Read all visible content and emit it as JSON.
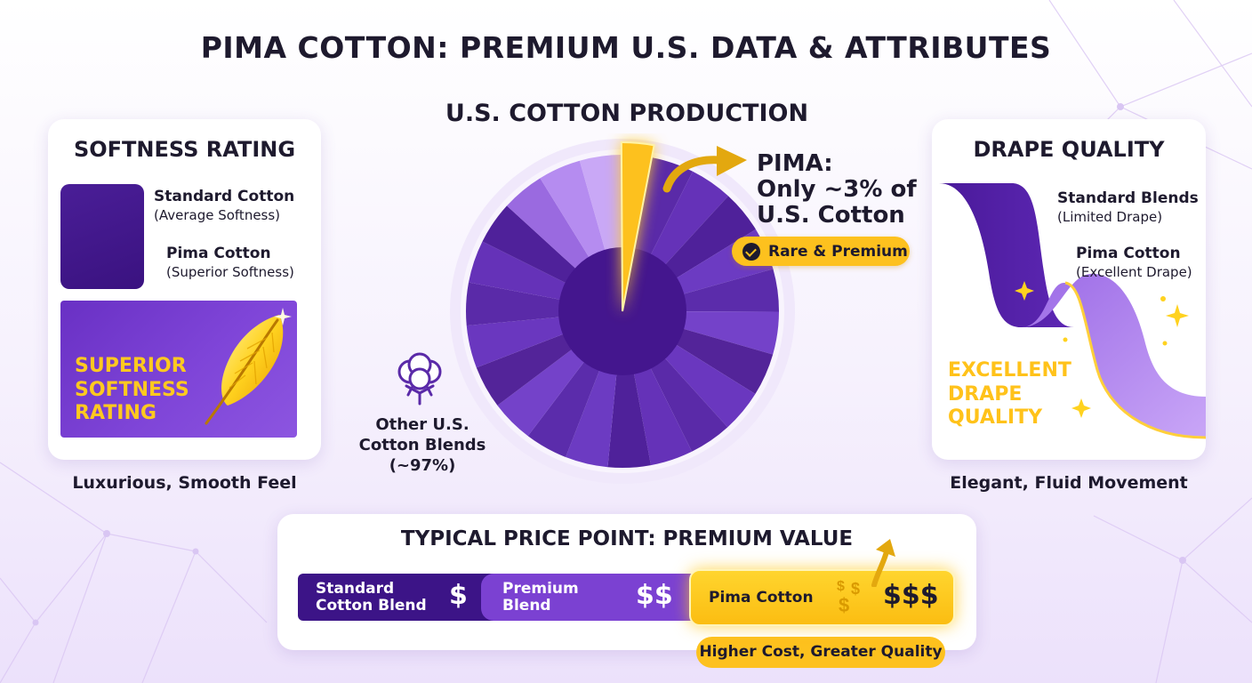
{
  "title": "PIMA COTTON: PREMIUM U.S. DATA & ATTRIBUTES",
  "colors": {
    "purple_dark": "#3c1487",
    "purple_mid": "#7b41d2",
    "purple_light": "#b68cf2",
    "gold": "#fdc11e",
    "background": "#f6f1fd"
  },
  "softness": {
    "title": "SOFTNESS RATING",
    "standard_label": "Standard Cotton",
    "standard_sub": "(Average Softness)",
    "pima_label": "Pima Cotton",
    "pima_sub": "(Superior Softness)",
    "highlight_lines": [
      "SUPERIOR",
      "SOFTNESS",
      "RATING"
    ],
    "icon": "feather-icon",
    "caption": "Luxurious, Smooth Feel"
  },
  "production": {
    "title": "U.S. COTTON PRODUCTION",
    "pima_lines": [
      "PIMA:",
      "Only ~3% of",
      "U.S. Cotton"
    ],
    "badge": "Rare & Premium",
    "other_lines": [
      "Other U.S.",
      "Cotton Blends",
      "(~97%)"
    ],
    "icon": "cotton-boll-icon"
  },
  "chart_data": {
    "type": "pie",
    "title": "U.S. COTTON PRODUCTION",
    "slices": [
      {
        "label": "PIMA",
        "value": 3,
        "color": "#fdc11e"
      },
      {
        "label": "Other U.S. Cotton Blends",
        "value": 97,
        "color": "#5a2aa8"
      }
    ]
  },
  "drape": {
    "title": "DRAPE QUALITY",
    "standard_label": "Standard Blends",
    "standard_sub": "(Limited Drape)",
    "pima_label": "Pima Cotton",
    "pima_sub": "(Excellent Drape)",
    "highlight_lines": [
      "EXCELLENT",
      "DRAPE",
      "QUALITY"
    ],
    "icon": "sparkle-icon",
    "caption": "Elegant, Fluid Movement"
  },
  "price": {
    "title": "TYPICAL PRICE POINT: PREMIUM VALUE",
    "tiers": [
      {
        "lines": [
          "Standard",
          "Cotton Blend"
        ],
        "symbol": "$"
      },
      {
        "lines": [
          "Premium",
          "Blend"
        ],
        "symbol": "$$"
      },
      {
        "lines": [
          "Pima Cotton"
        ],
        "symbol": "$$$"
      }
    ],
    "badge": "Higher Cost, Greater Quality",
    "icon": "up-arrow-icon"
  }
}
